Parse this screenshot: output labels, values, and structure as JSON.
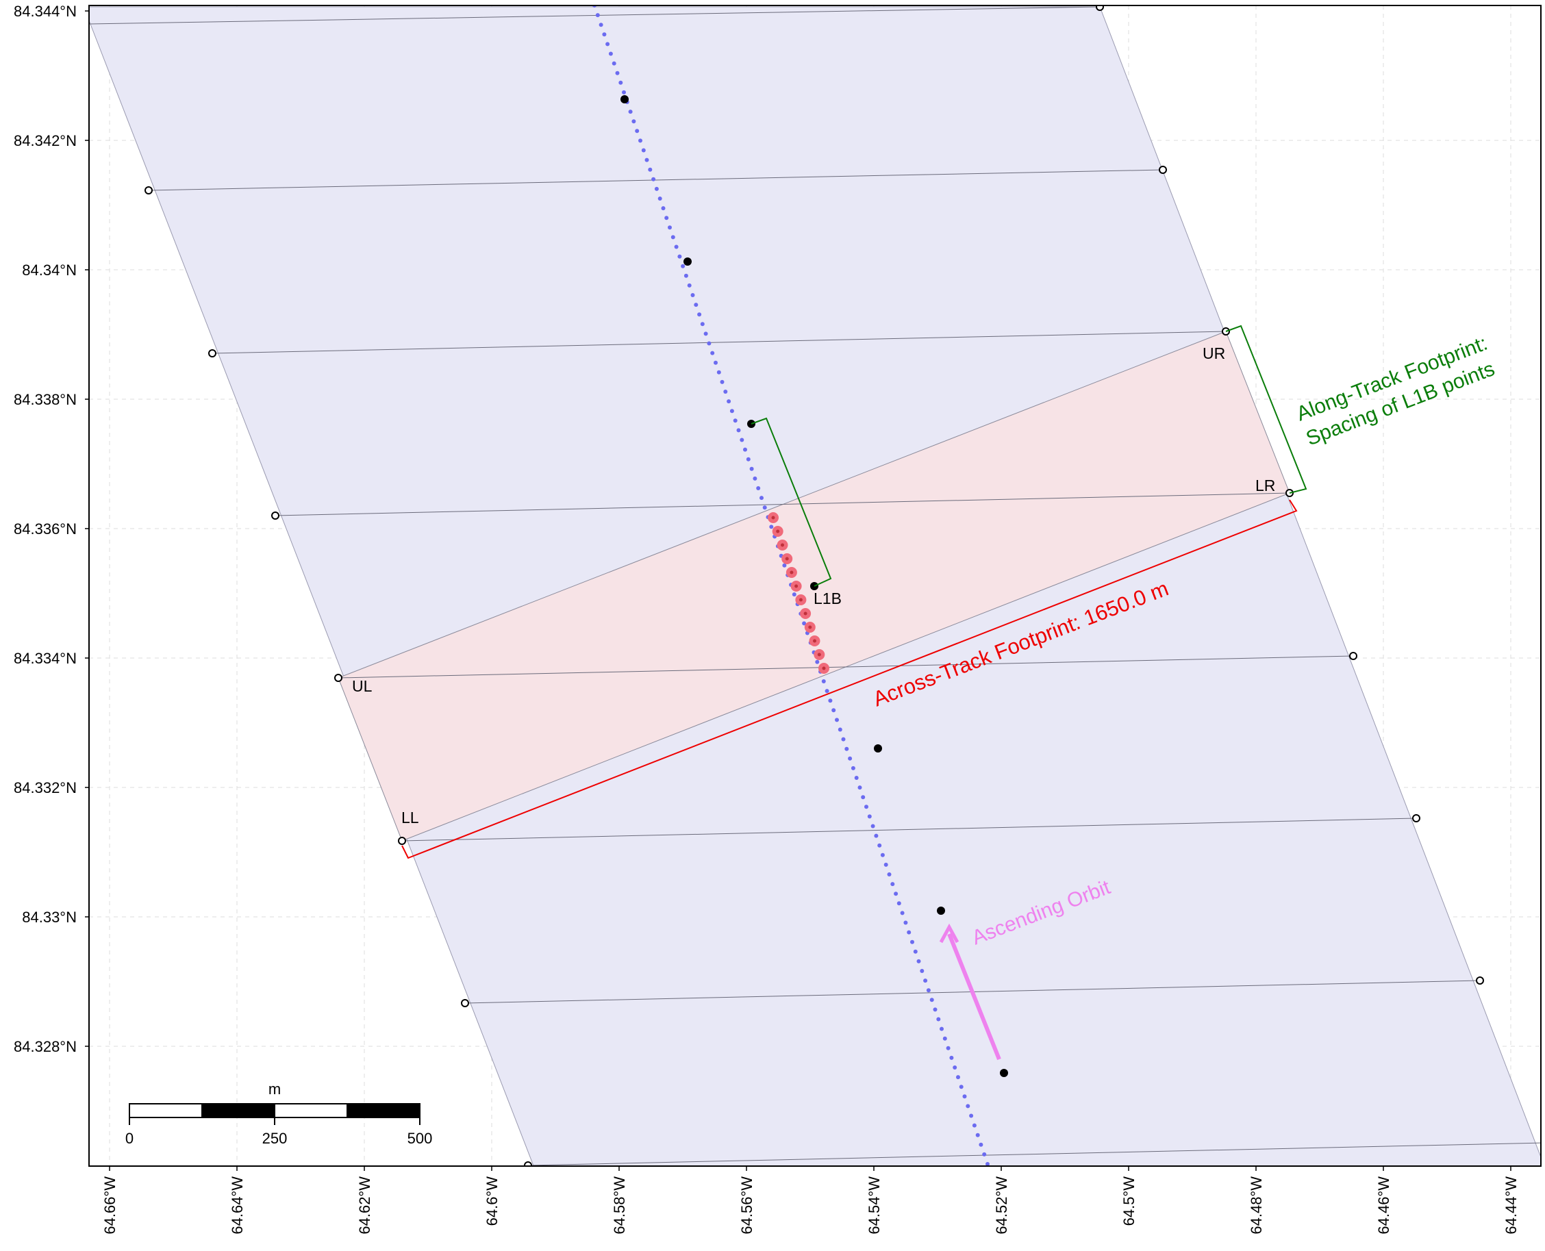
{
  "map": {
    "lat_ticks": [
      "84.344°N",
      "84.342°N",
      "84.34°N",
      "84.338°N",
      "84.336°N",
      "84.334°N",
      "84.332°N",
      "84.33°N",
      "84.328°N"
    ],
    "lon_ticks": [
      "64.66°W",
      "64.64°W",
      "64.62°W",
      "64.6°W",
      "64.58°W",
      "64.56°W",
      "64.54°W",
      "64.52°W",
      "64.5°W",
      "64.48°W",
      "64.46°W",
      "64.44°W"
    ],
    "corner_labels": {
      "ul": "UL",
      "ur": "UR",
      "ll": "LL",
      "lr": "LR"
    },
    "l1b_label": "L1B",
    "across_track_label": "Across-Track Footprint: 1650.0 m",
    "along_track_label_line1": "Along-Track Footprint:",
    "along_track_label_line2": "Spacing of L1B points",
    "orbit_label": "Ascending Orbit",
    "scale_bar": {
      "unit": "m",
      "labels": [
        "0",
        "250",
        "500"
      ]
    },
    "colors": {
      "footprint_fill": "#e8e8f6",
      "highlight_fill": "#f7e3e6",
      "track_dots": "#6b6bf0",
      "across_track": "#ee0000",
      "along_track": "#0a7d0a",
      "orbit_arrow": "#ee82ee",
      "highlight_points": "#f06a7a"
    }
  }
}
